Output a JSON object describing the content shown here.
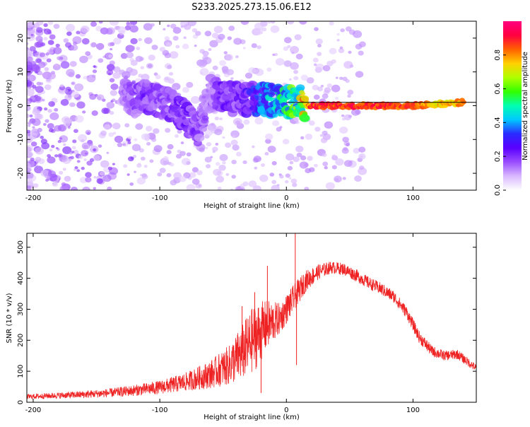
{
  "page_title": "S233.2025.273.15.06.E12",
  "chart_data": [
    {
      "type": "heatmap",
      "xlabel": "Height of straight line (km)",
      "ylabel": "Frequency (Hz)",
      "xlim": [
        -205,
        150
      ],
      "ylim": [
        -25,
        25
      ],
      "xticks": [
        -200,
        -100,
        0,
        100
      ],
      "yticks": [
        -20,
        -10,
        0,
        10,
        20
      ],
      "colorbar": {
        "label": "Normalized spectral amplitude",
        "range": [
          0.0,
          1.0
        ],
        "ticks": [
          0.0,
          0.2,
          0.4,
          0.6,
          0.8
        ],
        "tick_labels": [
          "0.0",
          "0.2",
          "0.4",
          "0.6",
          "0.8"
        ],
        "palette": [
          "#ffffff",
          "#d9b8ff",
          "#9a4dff",
          "#5a00ff",
          "#2a2aff",
          "#00c8ff",
          "#00ffb0",
          "#33ff00",
          "#b0ff00",
          "#ffd000",
          "#ff6000",
          "#ff0040",
          "#ff0080"
        ]
      },
      "baseline": {
        "x": [
          0,
          150
        ],
        "y": 1.0
      },
      "ridge": [
        {
          "x": -130,
          "f": 3,
          "a": 0.12
        },
        {
          "x": -120,
          "f": 2,
          "a": 0.18
        },
        {
          "x": -110,
          "f": 3,
          "a": 0.2
        },
        {
          "x": -100,
          "f": 1,
          "a": 0.18
        },
        {
          "x": -90,
          "f": 0,
          "a": 0.2
        },
        {
          "x": -80,
          "f": -3,
          "a": 0.22
        },
        {
          "x": -70,
          "f": -7,
          "a": 0.18
        },
        {
          "x": -60,
          "f": 4,
          "a": 0.15
        },
        {
          "x": -50,
          "f": 3,
          "a": 0.22
        },
        {
          "x": -40,
          "f": 2,
          "a": 0.2
        },
        {
          "x": -30,
          "f": 2,
          "a": 0.25
        },
        {
          "x": -20,
          "f": 2,
          "a": 0.35
        },
        {
          "x": -10,
          "f": 1.5,
          "a": 0.45
        },
        {
          "x": 0,
          "f": 1,
          "a": 0.5
        },
        {
          "x": 10,
          "f": 1,
          "a": 0.6
        },
        {
          "x": 20,
          "f": 0,
          "a": 0.95
        },
        {
          "x": 40,
          "f": 0,
          "a": 0.95
        },
        {
          "x": 60,
          "f": 0,
          "a": 0.95
        },
        {
          "x": 80,
          "f": 0,
          "a": 0.95
        },
        {
          "x": 100,
          "f": 0,
          "a": 0.9
        },
        {
          "x": 120,
          "f": 0.5,
          "a": 0.8
        },
        {
          "x": 140,
          "f": 1,
          "a": 0.85
        }
      ]
    },
    {
      "type": "line",
      "xlabel": "Height of straight line (km)",
      "ylabel": "SNR (10 * v/v)",
      "xlim": [
        -205,
        150
      ],
      "ylim": [
        0,
        545
      ],
      "xticks": [
        -200,
        -100,
        0,
        100
      ],
      "yticks": [
        0,
        100,
        200,
        300,
        400,
        500
      ],
      "series": [
        {
          "name": "SNR",
          "color": "#ee2222",
          "envelope": [
            {
              "x": -205,
              "y": 18,
              "spread": 8
            },
            {
              "x": -180,
              "y": 22,
              "spread": 10
            },
            {
              "x": -160,
              "y": 25,
              "spread": 12
            },
            {
              "x": -140,
              "y": 30,
              "spread": 14
            },
            {
              "x": -120,
              "y": 38,
              "spread": 18
            },
            {
              "x": -100,
              "y": 48,
              "spread": 22
            },
            {
              "x": -80,
              "y": 65,
              "spread": 30
            },
            {
              "x": -60,
              "y": 90,
              "spread": 45
            },
            {
              "x": -45,
              "y": 120,
              "spread": 65
            },
            {
              "x": -35,
              "y": 160,
              "spread": 90
            },
            {
              "x": -25,
              "y": 210,
              "spread": 110
            },
            {
              "x": -15,
              "y": 250,
              "spread": 80
            },
            {
              "x": -5,
              "y": 270,
              "spread": 50
            },
            {
              "x": 5,
              "y": 330,
              "spread": 45
            },
            {
              "x": 15,
              "y": 390,
              "spread": 35
            },
            {
              "x": 25,
              "y": 420,
              "spread": 25
            },
            {
              "x": 35,
              "y": 435,
              "spread": 20
            },
            {
              "x": 45,
              "y": 430,
              "spread": 20
            },
            {
              "x": 55,
              "y": 410,
              "spread": 20
            },
            {
              "x": 65,
              "y": 385,
              "spread": 20
            },
            {
              "x": 75,
              "y": 365,
              "spread": 20
            },
            {
              "x": 85,
              "y": 340,
              "spread": 20
            },
            {
              "x": 95,
              "y": 290,
              "spread": 20
            },
            {
              "x": 105,
              "y": 210,
              "spread": 20
            },
            {
              "x": 115,
              "y": 165,
              "spread": 18
            },
            {
              "x": 125,
              "y": 150,
              "spread": 16
            },
            {
              "x": 135,
              "y": 155,
              "spread": 16
            },
            {
              "x": 145,
              "y": 125,
              "spread": 14
            },
            {
              "x": 150,
              "y": 110,
              "spread": 12
            }
          ],
          "spikes": [
            {
              "x": 7,
              "y": 545
            },
            {
              "x": 8,
              "y": 120
            },
            {
              "x": -25,
              "y": 355
            },
            {
              "x": -20,
              "y": 30
            },
            {
              "x": -35,
              "y": 310
            },
            {
              "x": -15,
              "y": 440
            }
          ]
        }
      ]
    }
  ]
}
